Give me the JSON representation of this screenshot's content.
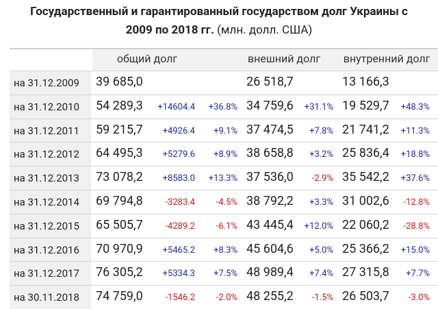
{
  "header": {
    "title_bold": "Государственный и гарантированный государством долг Украины с 2009 по 2018 гг.",
    "title_unit": "(млн. долл. США)"
  },
  "table": {
    "columns": [
      "общий долг",
      "внешний долг",
      "внутренний долг"
    ],
    "rows": [
      {
        "date": "на 31.12.2009",
        "total": "39 685,0",
        "external": "26 518,7",
        "internal": "13 166,3"
      },
      {
        "date": "на 31.12.2010",
        "total": "54 289,3",
        "total_change": "+14604.4",
        "total_pct": "+36.8%",
        "external": "34 759,6",
        "external_pct": "+31.1%",
        "internal": "19 529,7",
        "internal_pct": "+48.3%"
      },
      {
        "date": "на 31.12.2011",
        "total": "59 215,7",
        "total_change": "+4926.4",
        "total_pct": "+9.1%",
        "external": "37 474,5",
        "external_pct": "+7.8%",
        "internal": "21 741,2",
        "internal_pct": "+11.3%"
      },
      {
        "date": "на 31.12.2012",
        "total": "64 495,3",
        "total_change": "+5279.6",
        "total_pct": "+8.9%",
        "external": "38 658,8",
        "external_pct": "+3.2%",
        "internal": "25 836,4",
        "internal_pct": "+18.8%"
      },
      {
        "date": "на 31.12.2013",
        "total": "73 078,2",
        "total_change": "+8583.0",
        "total_pct": "+13.3%",
        "external": "37 536,0",
        "external_pct": "-2.9%",
        "internal": "35 542,2",
        "internal_pct": "+37.6%"
      },
      {
        "date": "на 31.12.2014",
        "total": "69 794,8",
        "total_change": "-3283.4",
        "total_pct": "-4.5%",
        "external": "38 792,2",
        "external_pct": "+3.3%",
        "internal": "31 002,6",
        "internal_pct": "-12.8%"
      },
      {
        "date": "на 31.12.2015",
        "total": "65 505,7",
        "total_change": "-4289.2",
        "total_pct": "-6.1%",
        "external": "43 445,4",
        "external_pct": "+12.0%",
        "internal": "22 060,2",
        "internal_pct": "-28.8%"
      },
      {
        "date": "на 31.12.2016",
        "total": "70 970,9",
        "total_change": "+5465.2",
        "total_pct": "+8.3%",
        "external": "45 604,6",
        "external_pct": "+5.0%",
        "internal": "25 366,2",
        "internal_pct": "+15.0%"
      },
      {
        "date": "на 31.12.2017",
        "total": "76 305,2",
        "total_change": "+5334.3",
        "total_pct": "+7.5%",
        "external": "48 989,4",
        "external_pct": "+7.4%",
        "internal": "27 315,8",
        "internal_pct": "+7.7%"
      },
      {
        "date": "на 30.11.2018",
        "total": "74 759,0",
        "total_change": "-1546.2",
        "total_pct": "-2.0%",
        "external": "48 255,2",
        "external_pct": "-1.5%",
        "internal": "26 503,7",
        "internal_pct": "-3.0%"
      }
    ]
  }
}
